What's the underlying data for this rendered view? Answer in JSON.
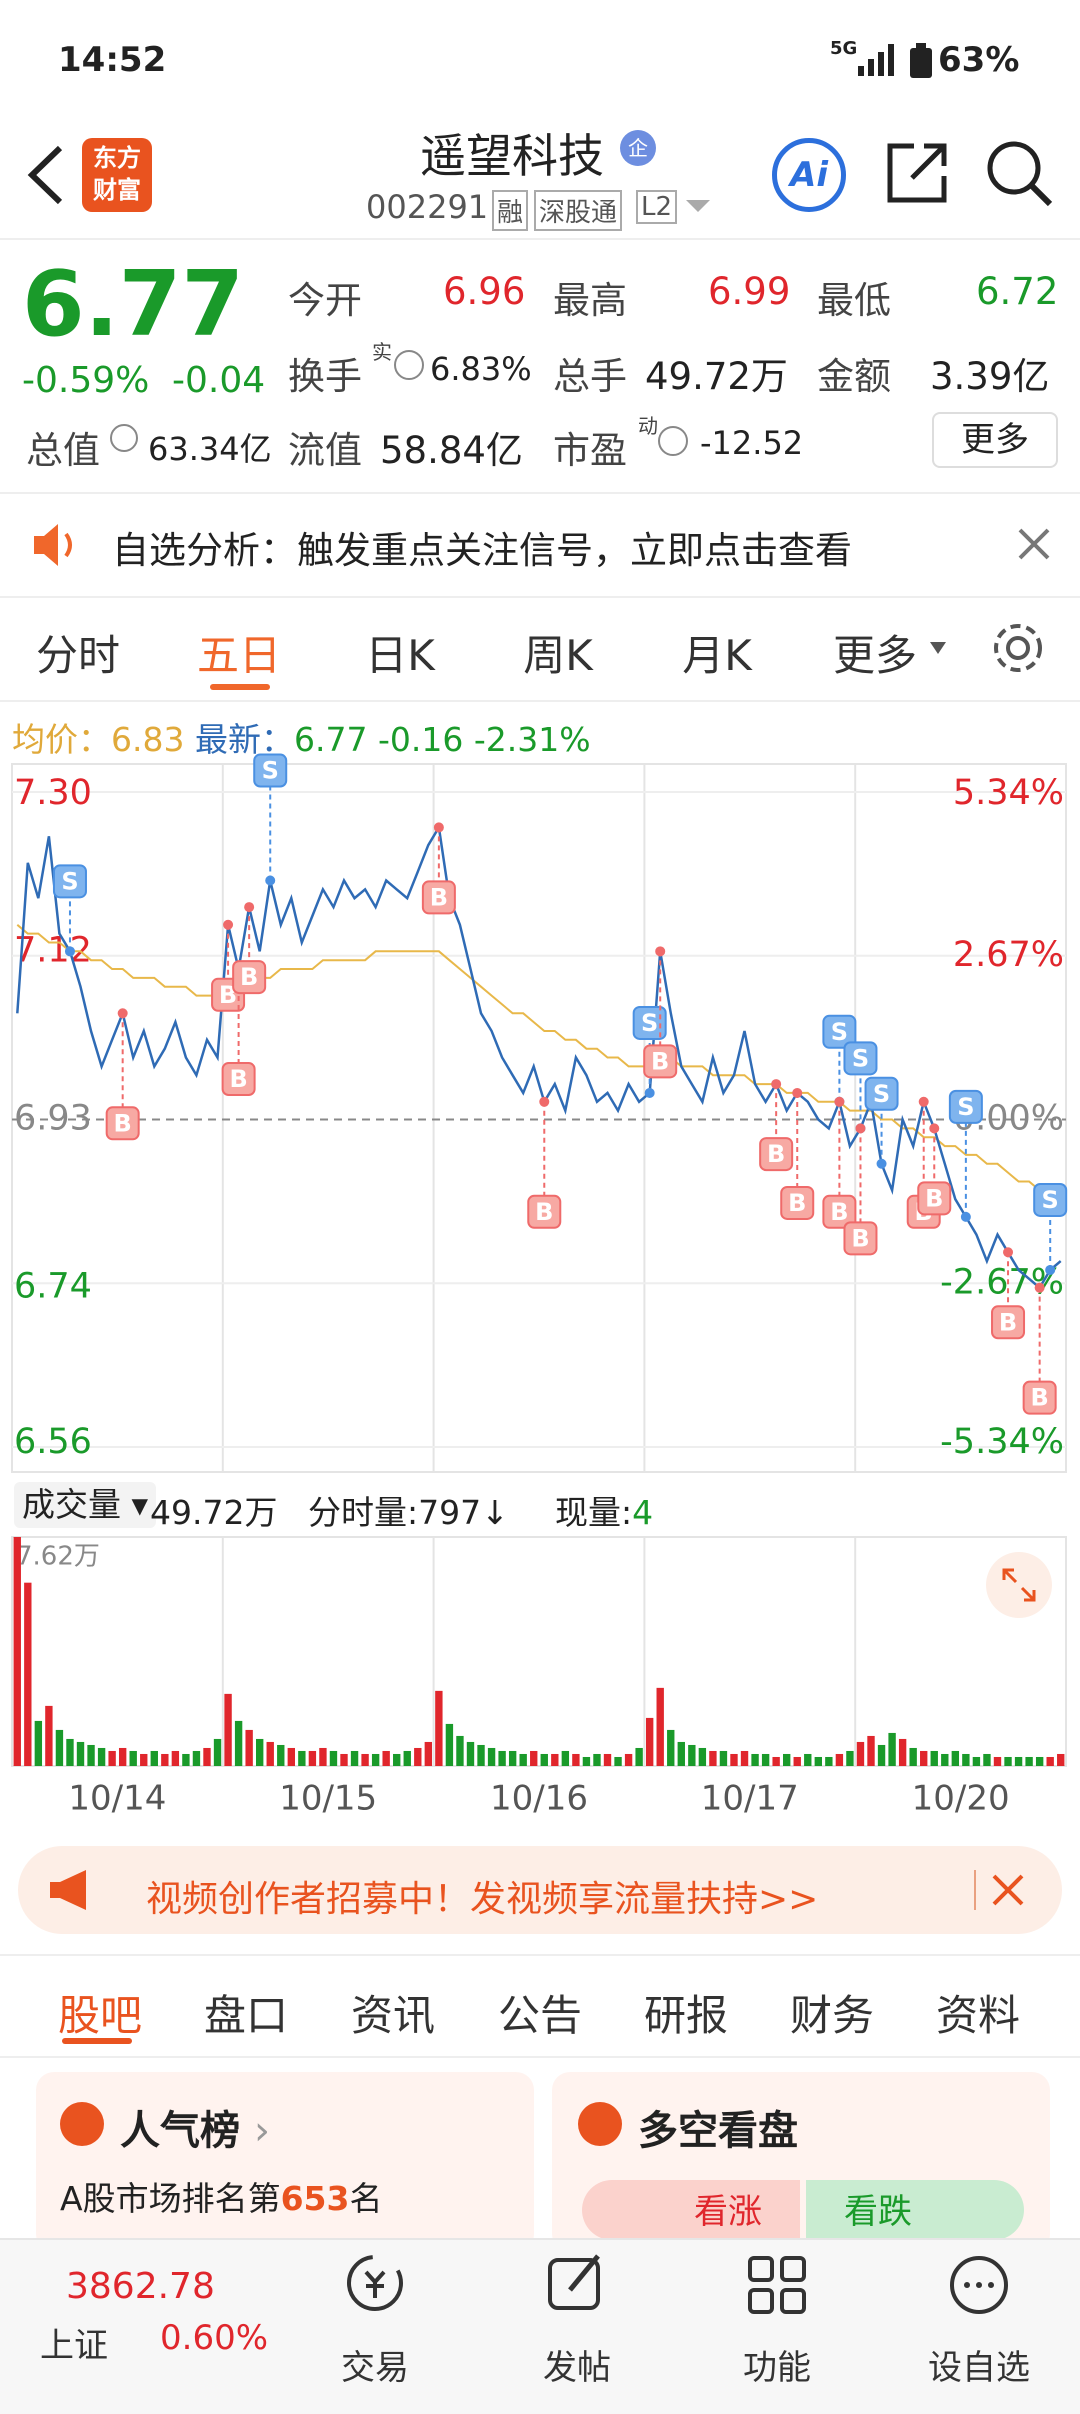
{
  "status_bar": {
    "time": "14:52",
    "network": "5G",
    "battery": "63%"
  },
  "header": {
    "logo": [
      "东方",
      "财富"
    ],
    "title": "遥望科技",
    "title_badge": "企",
    "code": "002291",
    "badges": [
      "融",
      "深股通",
      "L2"
    ],
    "ai": "Ai"
  },
  "quote": {
    "price": "6.77",
    "change_pct": "-0.59%",
    "change": "-0.04",
    "fields": [
      {
        "label": "今开",
        "value": "6.96"
      },
      {
        "label": "最高",
        "value": "6.99"
      },
      {
        "label": "最低",
        "value": "6.72"
      },
      {
        "label": "换手",
        "sup": "实",
        "value": "6.83%"
      },
      {
        "label": "总手",
        "value": "49.72万"
      },
      {
        "label": "金额",
        "value": "3.39亿"
      },
      {
        "label": "总值",
        "value": "63.34亿"
      },
      {
        "label": "流值",
        "value": "58.84亿"
      },
      {
        "label": "市盈",
        "sup": "动",
        "value": "-12.52"
      }
    ],
    "more": "更多"
  },
  "notice": {
    "text": "自选分析：触发重点关注信号，立即点击查看"
  },
  "tabs": {
    "items": [
      "分时",
      "五日",
      "日K",
      "周K",
      "月K",
      "更多"
    ],
    "active": 1
  },
  "chart_info": {
    "avg_label": "均价：",
    "avg": "6.83",
    "last_label": "最新：",
    "last": "6.77",
    "change": "-0.16",
    "change_pct": "-2.31%"
  },
  "chart_data": [
    {
      "type": "line",
      "ylim": [
        6.56,
        7.3
      ],
      "yticks": [
        {
          "value": 7.3,
          "label": "7.30"
        },
        7.12,
        6.93,
        6.74,
        6.56
      ],
      "y2lim": [
        -5.34,
        5.34
      ],
      "y2ticks": [
        {
          "value": 5.34,
          "label": "5.34%"
        },
        {
          "value": 2.67,
          "label": "2.67%"
        },
        {
          "value": 0,
          "label": "0.00%"
        },
        {
          "value": -2.67,
          "label": "-2.67%"
        },
        {
          "value": -5.34,
          "label": "-5.34%"
        }
      ],
      "day_labels": [
        "10/14",
        "10/15",
        "10/16",
        "10/17",
        "10/20"
      ],
      "series": [
        {
          "name": "price",
          "color": "#2f6bb5",
          "values": [
            7.05,
            7.22,
            7.18,
            7.25,
            7.14,
            7.12,
            7.08,
            7.03,
            6.99,
            7.02,
            7.05,
            7.0,
            7.03,
            6.99,
            7.01,
            7.04,
            7.0,
            6.98,
            7.02,
            7.0,
            7.15,
            7.1,
            7.17,
            7.12,
            7.2,
            7.15,
            7.18,
            7.13,
            7.16,
            7.19,
            7.17,
            7.2,
            7.18,
            7.19,
            7.17,
            7.2,
            7.19,
            7.18,
            7.21,
            7.24,
            7.26,
            7.18,
            7.15,
            7.1,
            7.05,
            7.03,
            7.0,
            6.98,
            6.96,
            6.99,
            6.95,
            6.97,
            6.94,
            7.0,
            6.98,
            6.95,
            6.96,
            6.94,
            6.97,
            6.95,
            6.96,
            7.12,
            7.05,
            6.99,
            6.97,
            6.95,
            7.0,
            6.96,
            6.98,
            7.03,
            6.97,
            6.95,
            6.97,
            6.94,
            6.96,
            6.95,
            6.93,
            6.92,
            6.95,
            6.9,
            6.92,
            6.95,
            6.88,
            6.85,
            6.93,
            6.9,
            6.95,
            6.92,
            6.88,
            6.84,
            6.82,
            6.8,
            6.77,
            6.8,
            6.78,
            6.76,
            6.75,
            6.74,
            6.76,
            6.77
          ]
        },
        {
          "name": "average",
          "color": "#e8b84a",
          "values": [
            7.15,
            7.14,
            7.14,
            7.13,
            7.13,
            7.12,
            7.12,
            7.11,
            7.11,
            7.1,
            7.1,
            7.09,
            7.09,
            7.09,
            7.08,
            7.08,
            7.08,
            7.07,
            7.07,
            7.07,
            7.08,
            7.08,
            7.09,
            7.09,
            7.09,
            7.1,
            7.1,
            7.1,
            7.1,
            7.11,
            7.11,
            7.11,
            7.11,
            7.11,
            7.12,
            7.12,
            7.12,
            7.12,
            7.12,
            7.12,
            7.12,
            7.11,
            7.1,
            7.09,
            7.08,
            7.07,
            7.06,
            7.05,
            7.05,
            7.04,
            7.03,
            7.03,
            7.02,
            7.02,
            7.01,
            7.01,
            7.0,
            7.0,
            6.99,
            6.99,
            6.99,
            7.0,
            7.0,
            6.99,
            6.99,
            6.99,
            6.98,
            6.98,
            6.98,
            6.98,
            6.97,
            6.97,
            6.97,
            6.96,
            6.96,
            6.96,
            6.95,
            6.95,
            6.95,
            6.94,
            6.94,
            6.94,
            6.93,
            6.93,
            6.92,
            6.92,
            6.91,
            6.91,
            6.9,
            6.9,
            6.89,
            6.89,
            6.88,
            6.88,
            6.87,
            6.86,
            6.86,
            6.85,
            6.84,
            6.83
          ]
        }
      ],
      "signals": [
        {
          "label": "S",
          "index": 5
        },
        {
          "label": "B",
          "index": 10
        },
        {
          "label": "B",
          "index": 20
        },
        {
          "label": "B",
          "index": 21
        },
        {
          "label": "B",
          "index": 22
        },
        {
          "label": "S",
          "index": 24
        },
        {
          "label": "B",
          "index": 40
        },
        {
          "label": "B",
          "index": 50
        },
        {
          "label": "S",
          "index": 60
        },
        {
          "label": "B",
          "index": 61
        },
        {
          "label": "B",
          "index": 72
        },
        {
          "label": "B",
          "index": 74
        },
        {
          "label": "S",
          "index": 78
        },
        {
          "label": "B",
          "index": 78
        },
        {
          "label": "S",
          "index": 80
        },
        {
          "label": "B",
          "index": 80
        },
        {
          "label": "S",
          "index": 82
        },
        {
          "label": "B",
          "index": 86
        },
        {
          "label": "B",
          "index": 87
        },
        {
          "label": "S",
          "index": 90
        },
        {
          "label": "B",
          "index": 94
        },
        {
          "label": "B",
          "index": 97
        },
        {
          "label": "S",
          "index": 98
        }
      ]
    },
    {
      "type": "bar",
      "ylim": [
        0,
        7.62
      ],
      "yticks": [
        {
          "value": 7.62,
          "label": "7.62万"
        }
      ],
      "values": [
        7.62,
        6.1,
        1.5,
        2.0,
        1.2,
        0.9,
        0.8,
        0.7,
        0.6,
        0.5,
        0.6,
        0.5,
        0.4,
        0.5,
        0.4,
        0.5,
        0.4,
        0.5,
        0.6,
        0.9,
        2.4,
        1.5,
        1.2,
        0.9,
        0.8,
        0.7,
        0.6,
        0.5,
        0.5,
        0.6,
        0.5,
        0.4,
        0.5,
        0.4,
        0.4,
        0.5,
        0.4,
        0.5,
        0.6,
        0.8,
        2.5,
        1.4,
        1.0,
        0.8,
        0.7,
        0.6,
        0.5,
        0.5,
        0.4,
        0.5,
        0.4,
        0.4,
        0.5,
        0.4,
        0.3,
        0.4,
        0.4,
        0.3,
        0.4,
        0.6,
        1.6,
        2.6,
        1.2,
        0.8,
        0.7,
        0.6,
        0.5,
        0.5,
        0.4,
        0.5,
        0.4,
        0.4,
        0.3,
        0.4,
        0.3,
        0.4,
        0.3,
        0.3,
        0.4,
        0.5,
        0.8,
        1.0,
        0.7,
        1.1,
        0.9,
        0.6,
        0.5,
        0.5,
        0.4,
        0.5,
        0.4,
        0.3,
        0.4,
        0.3,
        0.3,
        0.3,
        0.3,
        0.3,
        0.3,
        0.4
      ],
      "up_color": "#e0262c",
      "down_color": "#1a9a2a"
    }
  ],
  "volume_info": {
    "selector": "成交量",
    "total": "49.72万",
    "tick_label": "分时量:",
    "tick": "797↓",
    "now_label": "现量:",
    "now": "4"
  },
  "ad": {
    "text": "视频创作者招募中！发视频享流量扶持>>"
  },
  "section_tabs": {
    "items": [
      "股吧",
      "盘口",
      "资讯",
      "公告",
      "研报",
      "财务",
      "资料"
    ],
    "active": 0
  },
  "cards": [
    {
      "title": "人气榜",
      "text_prefix": "A股市场排名第",
      "rank": "653",
      "text_suffix": "名"
    },
    {
      "title": "多空看盘",
      "up": "看涨",
      "down": "看跌"
    }
  ],
  "bottom_nav": {
    "index_value": "3862.78",
    "index_name": "上证",
    "index_change": "0.60%",
    "items": [
      "交易",
      "发帖",
      "功能",
      "设自选"
    ]
  }
}
